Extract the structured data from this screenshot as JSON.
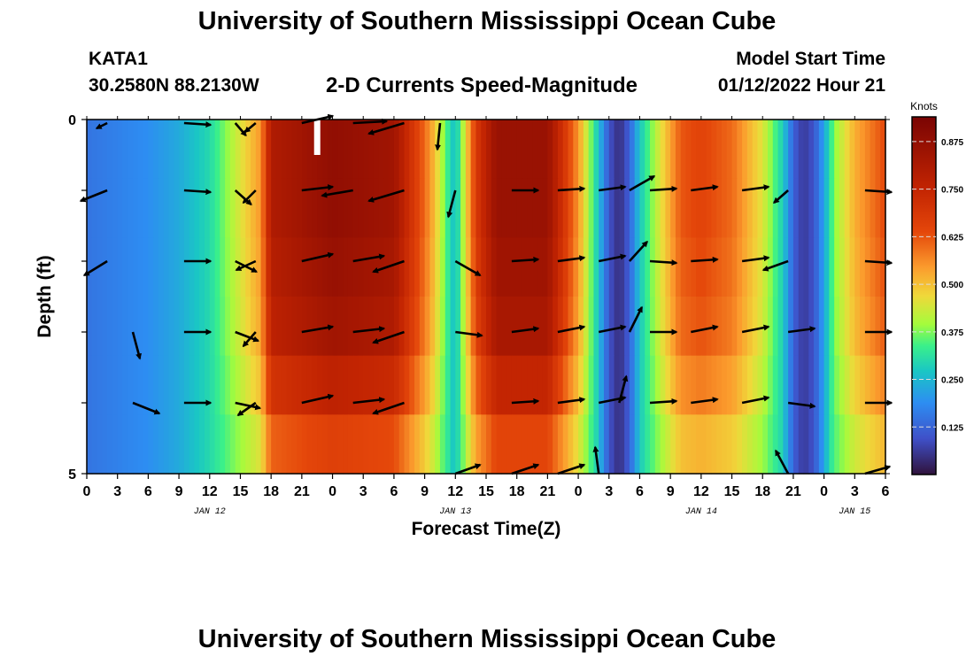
{
  "header": {
    "title": "University of Southern Mississippi Ocean Cube",
    "station_id": "KATA1",
    "station_coords": "30.2580N  88.2130W",
    "chart_title": "2-D Currents Speed-Magnitude",
    "model_start_label": "Model Start Time",
    "model_start_time": "01/12/2022 Hour 21"
  },
  "footer": {
    "title": "University of Southern Mississippi Ocean Cube"
  },
  "chart_data": {
    "type": "heatmap",
    "title": "2-D Currents Speed-Magnitude",
    "xlabel": "Forecast Time(Z)",
    "ylabel": "Depth (ft)",
    "y_ticks": [
      "0",
      "5"
    ],
    "ylim": [
      0,
      5
    ],
    "x_tick_labels": [
      "0",
      "3",
      "6",
      "9",
      "12",
      "15",
      "18",
      "21",
      "0",
      "3",
      "6",
      "9",
      "12",
      "15",
      "18",
      "21",
      "0",
      "3",
      "6",
      "9",
      "12",
      "15",
      "18",
      "21",
      "0",
      "3",
      "6"
    ],
    "date_labels": [
      {
        "label": "JAN 12",
        "hour": 12
      },
      {
        "label": "JAN 13",
        "hour": 36
      },
      {
        "label": "JAN 14",
        "hour": 60
      },
      {
        "label": "JAN 15",
        "hour": 75
      }
    ],
    "colorbar": {
      "label": "Knots",
      "range": [
        0.0,
        0.94
      ],
      "ticks": [
        0.125,
        0.25,
        0.375,
        0.5,
        0.625,
        0.75,
        0.875
      ],
      "tick_labels": [
        "0.125",
        "0.250",
        "0.375",
        "0.500",
        "0.625",
        "0.750",
        "0.875"
      ]
    },
    "speed_profile_hours": [
      0,
      6,
      9,
      12,
      14,
      17,
      18,
      24,
      30,
      33,
      34,
      35,
      36,
      38,
      40,
      45,
      48,
      50,
      51,
      52,
      53,
      54,
      56,
      58,
      60,
      63,
      66,
      68,
      69,
      70,
      71,
      72,
      73,
      75,
      76,
      77,
      78
    ],
    "speed_profile_knots": [
      0.15,
      0.19,
      0.23,
      0.3,
      0.4,
      0.55,
      0.8,
      0.88,
      0.84,
      0.6,
      0.5,
      0.36,
      0.25,
      0.68,
      0.86,
      0.86,
      0.55,
      0.26,
      0.1,
      0.04,
      0.12,
      0.27,
      0.45,
      0.62,
      0.65,
      0.6,
      0.45,
      0.28,
      0.12,
      0.06,
      0.1,
      0.22,
      0.38,
      0.52,
      0.56,
      0.6,
      0.64
    ],
    "depth_factor": [
      1.0,
      1.0,
      0.97,
      0.93,
      0.8,
      0.62
    ],
    "vectors": [
      {
        "hour": 2,
        "depth": 0.05,
        "u": -0.12,
        "v": -0.06
      },
      {
        "hour": 9.5,
        "depth": 0.05,
        "u": 0.3,
        "v": -0.02
      },
      {
        "hour": 14.5,
        "depth": 0.05,
        "u": 0.12,
        "v": -0.14
      },
      {
        "hour": 16.5,
        "depth": 0.05,
        "u": -0.12,
        "v": -0.1
      },
      {
        "hour": 21,
        "depth": 0.05,
        "u": 0.35,
        "v": 0.08
      },
      {
        "hour": 26,
        "depth": 0.05,
        "u": 0.38,
        "v": 0.02
      },
      {
        "hour": 31,
        "depth": 0.05,
        "u": -0.4,
        "v": -0.12
      },
      {
        "hour": 34.5,
        "depth": 0.05,
        "u": -0.03,
        "v": -0.3
      },
      {
        "hour": 2,
        "depth": 1.0,
        "u": -0.3,
        "v": -0.12
      },
      {
        "hour": 9.5,
        "depth": 1.0,
        "u": 0.3,
        "v": -0.02
      },
      {
        "hour": 14.5,
        "depth": 1.0,
        "u": 0.18,
        "v": -0.16
      },
      {
        "hour": 16.5,
        "depth": 1.0,
        "u": -0.14,
        "v": -0.14
      },
      {
        "hour": 21,
        "depth": 1.0,
        "u": 0.35,
        "v": 0.04
      },
      {
        "hour": 26,
        "depth": 1.0,
        "u": -0.35,
        "v": -0.06
      },
      {
        "hour": 31,
        "depth": 1.0,
        "u": -0.4,
        "v": -0.12
      },
      {
        "hour": 36,
        "depth": 1.0,
        "u": -0.08,
        "v": -0.3
      },
      {
        "hour": 41.5,
        "depth": 1.0,
        "u": 0.3,
        "v": 0.0
      },
      {
        "hour": 46,
        "depth": 1.0,
        "u": 0.3,
        "v": 0.02
      },
      {
        "hour": 50,
        "depth": 1.0,
        "u": 0.3,
        "v": 0.04
      },
      {
        "hour": 53,
        "depth": 1.0,
        "u": 0.28,
        "v": 0.16
      },
      {
        "hour": 55,
        "depth": 1.0,
        "u": 0.3,
        "v": 0.02
      },
      {
        "hour": 59,
        "depth": 1.0,
        "u": 0.3,
        "v": 0.04
      },
      {
        "hour": 64,
        "depth": 1.0,
        "u": 0.3,
        "v": 0.04
      },
      {
        "hour": 68.5,
        "depth": 1.0,
        "u": -0.16,
        "v": -0.14
      },
      {
        "hour": 76,
        "depth": 1.0,
        "u": 0.3,
        "v": -0.02
      },
      {
        "hour": 2,
        "depth": 2.0,
        "u": -0.26,
        "v": -0.16
      },
      {
        "hour": 9.5,
        "depth": 2.0,
        "u": 0.3,
        "v": 0.0
      },
      {
        "hour": 14.5,
        "depth": 2.0,
        "u": 0.24,
        "v": -0.12
      },
      {
        "hour": 16.5,
        "depth": 2.0,
        "u": -0.22,
        "v": -0.1
      },
      {
        "hour": 21,
        "depth": 2.0,
        "u": 0.35,
        "v": 0.08
      },
      {
        "hour": 26,
        "depth": 2.0,
        "u": 0.35,
        "v": 0.06
      },
      {
        "hour": 31,
        "depth": 2.0,
        "u": -0.35,
        "v": -0.12
      },
      {
        "hour": 36,
        "depth": 2.0,
        "u": 0.28,
        "v": -0.16
      },
      {
        "hour": 41.5,
        "depth": 2.0,
        "u": 0.3,
        "v": 0.02
      },
      {
        "hour": 46,
        "depth": 2.0,
        "u": 0.3,
        "v": 0.04
      },
      {
        "hour": 50,
        "depth": 2.0,
        "u": 0.3,
        "v": 0.06
      },
      {
        "hour": 53,
        "depth": 2.0,
        "u": 0.2,
        "v": 0.22
      },
      {
        "hour": 55,
        "depth": 2.0,
        "u": 0.3,
        "v": -0.02
      },
      {
        "hour": 59,
        "depth": 2.0,
        "u": 0.3,
        "v": 0.02
      },
      {
        "hour": 64,
        "depth": 2.0,
        "u": 0.3,
        "v": 0.04
      },
      {
        "hour": 68.5,
        "depth": 2.0,
        "u": -0.28,
        "v": -0.1
      },
      {
        "hour": 76,
        "depth": 2.0,
        "u": 0.3,
        "v": -0.02
      },
      {
        "hour": 4.5,
        "depth": 3.0,
        "u": 0.08,
        "v": -0.3
      },
      {
        "hour": 9.5,
        "depth": 3.0,
        "u": 0.3,
        "v": 0.0
      },
      {
        "hour": 14.5,
        "depth": 3.0,
        "u": 0.26,
        "v": -0.1
      },
      {
        "hour": 16.5,
        "depth": 3.0,
        "u": -0.14,
        "v": -0.16
      },
      {
        "hour": 21,
        "depth": 3.0,
        "u": 0.35,
        "v": 0.06
      },
      {
        "hour": 26,
        "depth": 3.0,
        "u": 0.35,
        "v": 0.04
      },
      {
        "hour": 31,
        "depth": 3.0,
        "u": -0.35,
        "v": -0.12
      },
      {
        "hour": 36,
        "depth": 3.0,
        "u": 0.3,
        "v": -0.04
      },
      {
        "hour": 41.5,
        "depth": 3.0,
        "u": 0.3,
        "v": 0.04
      },
      {
        "hour": 46,
        "depth": 3.0,
        "u": 0.3,
        "v": 0.06
      },
      {
        "hour": 50,
        "depth": 3.0,
        "u": 0.3,
        "v": 0.06
      },
      {
        "hour": 53,
        "depth": 3.0,
        "u": 0.14,
        "v": 0.28
      },
      {
        "hour": 55,
        "depth": 3.0,
        "u": 0.3,
        "v": 0.0
      },
      {
        "hour": 59,
        "depth": 3.0,
        "u": 0.3,
        "v": 0.06
      },
      {
        "hour": 64,
        "depth": 3.0,
        "u": 0.3,
        "v": 0.06
      },
      {
        "hour": 68.5,
        "depth": 3.0,
        "u": 0.3,
        "v": 0.04
      },
      {
        "hour": 76,
        "depth": 3.0,
        "u": 0.3,
        "v": 0.0
      },
      {
        "hour": 4.5,
        "depth": 4.0,
        "u": 0.3,
        "v": -0.12
      },
      {
        "hour": 9.5,
        "depth": 4.0,
        "u": 0.3,
        "v": 0.0
      },
      {
        "hour": 14.5,
        "depth": 4.0,
        "u": 0.28,
        "v": -0.06
      },
      {
        "hour": 16.5,
        "depth": 4.0,
        "u": -0.2,
        "v": -0.14
      },
      {
        "hour": 21,
        "depth": 4.0,
        "u": 0.35,
        "v": 0.08
      },
      {
        "hour": 26,
        "depth": 4.0,
        "u": 0.35,
        "v": 0.04
      },
      {
        "hour": 31,
        "depth": 4.0,
        "u": -0.35,
        "v": -0.12
      },
      {
        "hour": 41.5,
        "depth": 4.0,
        "u": 0.3,
        "v": 0.02
      },
      {
        "hour": 46,
        "depth": 4.0,
        "u": 0.3,
        "v": 0.04
      },
      {
        "hour": 50,
        "depth": 4.0,
        "u": 0.3,
        "v": 0.06
      },
      {
        "hour": 52,
        "depth": 4.0,
        "u": 0.08,
        "v": 0.3
      },
      {
        "hour": 55,
        "depth": 4.0,
        "u": 0.3,
        "v": 0.02
      },
      {
        "hour": 59,
        "depth": 4.0,
        "u": 0.3,
        "v": 0.04
      },
      {
        "hour": 64,
        "depth": 4.0,
        "u": 0.3,
        "v": 0.06
      },
      {
        "hour": 68.5,
        "depth": 4.0,
        "u": 0.3,
        "v": -0.04
      },
      {
        "hour": 76,
        "depth": 4.0,
        "u": 0.3,
        "v": 0.0
      },
      {
        "hour": 36,
        "depth": 5.0,
        "u": 0.28,
        "v": 0.1
      },
      {
        "hour": 41.5,
        "depth": 5.0,
        "u": 0.3,
        "v": 0.1
      },
      {
        "hour": 46,
        "depth": 5.0,
        "u": 0.3,
        "v": 0.1
      },
      {
        "hour": 50,
        "depth": 5.0,
        "u": -0.04,
        "v": 0.3
      },
      {
        "hour": 68.5,
        "depth": 5.0,
        "u": -0.14,
        "v": 0.26
      },
      {
        "hour": 76,
        "depth": 5.0,
        "u": 0.28,
        "v": 0.08
      }
    ]
  }
}
